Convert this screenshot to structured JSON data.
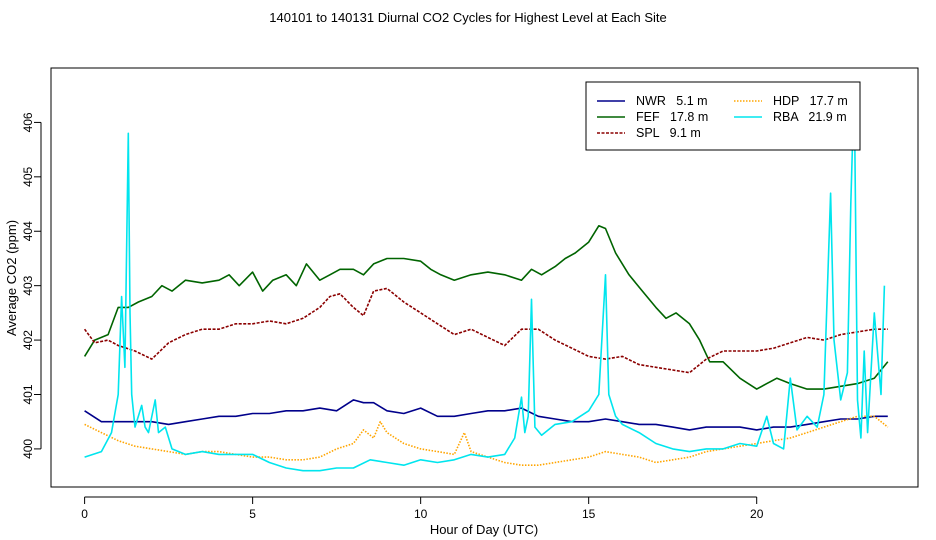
{
  "chart_data": {
    "type": "line",
    "title": "140101  to  140131 Diurnal CO2 Cycles for Highest Level at Each Site",
    "xlabel": "Hour of Day (UTC)",
    "ylabel": "Average CO2 (ppm)",
    "xlim": [
      -1,
      24.8
    ],
    "ylim": [
      399.3,
      407.0
    ],
    "xticks": [
      0,
      5,
      10,
      15,
      20
    ],
    "yticks": [
      400,
      401,
      402,
      403,
      404,
      405,
      406
    ],
    "legend_position": "top-right",
    "legend_columns": 2,
    "series": [
      {
        "name": "NWR   5.1 m",
        "color": "#00008B",
        "style": "solid",
        "x": [
          0,
          0.5,
          1,
          1.5,
          2,
          2.5,
          3,
          3.5,
          4,
          4.5,
          5,
          5.5,
          6,
          6.5,
          7,
          7.5,
          8,
          8.3,
          8.6,
          9,
          9.5,
          10,
          10.5,
          11,
          11.5,
          12,
          12.5,
          13,
          13.5,
          14,
          14.5,
          15,
          15.5,
          16,
          16.5,
          17,
          17.5,
          18,
          18.5,
          19,
          19.5,
          20,
          20.5,
          21,
          21.5,
          22,
          22.5,
          23,
          23.5,
          23.9
        ],
        "y": [
          400.7,
          400.5,
          400.5,
          400.5,
          400.5,
          400.45,
          400.5,
          400.55,
          400.6,
          400.6,
          400.65,
          400.65,
          400.7,
          400.7,
          400.75,
          400.7,
          400.9,
          400.85,
          400.85,
          400.7,
          400.65,
          400.75,
          400.6,
          400.6,
          400.65,
          400.7,
          400.7,
          400.75,
          400.6,
          400.55,
          400.5,
          400.5,
          400.55,
          400.5,
          400.45,
          400.45,
          400.4,
          400.35,
          400.4,
          400.4,
          400.4,
          400.35,
          400.4,
          400.4,
          400.45,
          400.5,
          400.55,
          400.55,
          400.6,
          400.6
        ]
      },
      {
        "name": "FEF   17.8 m",
        "color": "#006400",
        "style": "solid",
        "x": [
          0,
          0.3,
          0.7,
          1,
          1.3,
          1.6,
          2,
          2.3,
          2.6,
          3,
          3.5,
          4,
          4.3,
          4.6,
          5,
          5.3,
          5.6,
          6,
          6.3,
          6.6,
          7,
          7.3,
          7.6,
          8,
          8.3,
          8.6,
          9,
          9.5,
          10,
          10.3,
          10.6,
          11,
          11.5,
          12,
          12.5,
          13,
          13.3,
          13.6,
          14,
          14.3,
          14.6,
          15,
          15.3,
          15.5,
          15.8,
          16.2,
          16.6,
          17,
          17.3,
          17.6,
          18,
          18.3,
          18.6,
          19,
          19.5,
          20,
          20.3,
          20.6,
          21,
          21.5,
          22,
          22.5,
          23,
          23.5,
          23.9
        ],
        "y": [
          401.7,
          402.0,
          402.1,
          402.6,
          402.6,
          402.7,
          402.8,
          403.0,
          402.9,
          403.1,
          403.05,
          403.1,
          403.2,
          403.0,
          403.25,
          402.9,
          403.1,
          403.2,
          403.0,
          403.4,
          403.1,
          403.2,
          403.3,
          403.3,
          403.2,
          403.4,
          403.5,
          403.5,
          403.45,
          403.3,
          403.2,
          403.1,
          403.2,
          403.25,
          403.2,
          403.1,
          403.3,
          403.2,
          403.35,
          403.5,
          403.6,
          403.8,
          404.1,
          404.05,
          403.6,
          403.2,
          402.9,
          402.6,
          402.4,
          402.5,
          402.3,
          402.0,
          401.6,
          401.6,
          401.3,
          401.1,
          401.2,
          401.3,
          401.2,
          401.1,
          401.1,
          401.15,
          401.2,
          401.3,
          401.6
        ]
      },
      {
        "name": "SPL   9.1 m",
        "color": "#8B0000",
        "style": "dashed",
        "x": [
          0,
          0.3,
          0.7,
          1,
          1.5,
          2,
          2.5,
          3,
          3.5,
          4,
          4.5,
          5,
          5.5,
          6,
          6.5,
          7,
          7.3,
          7.6,
          8,
          8.3,
          8.6,
          9,
          9.5,
          10,
          10.5,
          11,
          11.5,
          12,
          12.5,
          13,
          13.5,
          14,
          14.5,
          15,
          15.5,
          16,
          16.5,
          17,
          17.5,
          18,
          18.5,
          19,
          19.5,
          20,
          20.5,
          21,
          21.5,
          22,
          22.5,
          23,
          23.5,
          23.9
        ],
        "y": [
          402.2,
          401.95,
          402.0,
          401.9,
          401.8,
          401.65,
          401.95,
          402.1,
          402.2,
          402.2,
          402.3,
          402.3,
          402.35,
          402.3,
          402.4,
          402.6,
          402.8,
          402.85,
          402.6,
          402.45,
          402.9,
          402.95,
          402.7,
          402.5,
          402.3,
          402.1,
          402.2,
          402.05,
          401.9,
          402.2,
          402.2,
          402.0,
          401.85,
          401.7,
          401.65,
          401.7,
          401.55,
          401.5,
          401.45,
          401.4,
          401.65,
          401.8,
          401.8,
          401.8,
          401.85,
          401.95,
          402.05,
          402.0,
          402.1,
          402.15,
          402.2,
          402.2
        ]
      },
      {
        "name": "HDP   17.7 m",
        "color": "#FFA500",
        "style": "dotted",
        "x": [
          0,
          0.5,
          1,
          1.5,
          2,
          2.5,
          3,
          3.5,
          4,
          4.5,
          5,
          5.5,
          6,
          6.5,
          7,
          7.5,
          8,
          8.3,
          8.6,
          8.8,
          9,
          9.5,
          10,
          10.5,
          11,
          11.3,
          11.5,
          12,
          12.5,
          13,
          13.5,
          14,
          14.5,
          15,
          15.5,
          16,
          16.5,
          17,
          17.5,
          18,
          18.5,
          19,
          19.5,
          20,
          20.5,
          21,
          21.5,
          22,
          22.5,
          23,
          23.5,
          23.9
        ],
        "y": [
          400.45,
          400.3,
          400.15,
          400.05,
          400.0,
          399.95,
          399.9,
          399.95,
          399.95,
          399.9,
          399.85,
          399.85,
          399.8,
          399.8,
          399.85,
          400.0,
          400.1,
          400.35,
          400.2,
          400.5,
          400.3,
          400.1,
          400.0,
          399.95,
          399.9,
          400.3,
          399.95,
          399.85,
          399.75,
          399.7,
          399.7,
          399.75,
          399.8,
          399.85,
          399.95,
          399.9,
          399.85,
          399.75,
          399.8,
          399.85,
          399.95,
          400.0,
          400.05,
          400.1,
          400.15,
          400.2,
          400.3,
          400.4,
          400.5,
          400.6,
          400.6,
          400.4
        ]
      },
      {
        "name": "RBA   21.9 m",
        "color": "#00E5EE",
        "style": "solid",
        "x": [
          0,
          0.5,
          0.8,
          1.0,
          1.1,
          1.2,
          1.3,
          1.35,
          1.4,
          1.5,
          1.7,
          1.8,
          1.9,
          2.1,
          2.2,
          2.4,
          2.6,
          3,
          3.5,
          4,
          4.5,
          5,
          5.5,
          6,
          6.5,
          7,
          7.5,
          8,
          8.5,
          9,
          9.5,
          10,
          10.5,
          11,
          11.5,
          12,
          12.5,
          12.8,
          13,
          13.1,
          13.2,
          13.3,
          13.4,
          13.6,
          14,
          14.5,
          15,
          15.3,
          15.5,
          15.6,
          15.8,
          16,
          16.5,
          17,
          17.5,
          18,
          18.5,
          19,
          19.5,
          20,
          20.3,
          20.5,
          20.8,
          21,
          21.2,
          21.5,
          21.8,
          22,
          22.2,
          22.3,
          22.5,
          22.7,
          22.8,
          22.9,
          23,
          23.1,
          23.2,
          23.3,
          23.5,
          23.7,
          23.8
        ],
        "y": [
          399.85,
          399.95,
          400.3,
          401.0,
          402.8,
          401.5,
          405.8,
          402.5,
          401.0,
          400.4,
          400.8,
          400.4,
          400.3,
          400.9,
          400.3,
          400.4,
          400.0,
          399.9,
          399.95,
          399.9,
          399.9,
          399.9,
          399.75,
          399.65,
          399.6,
          399.6,
          399.65,
          399.65,
          399.8,
          399.75,
          399.7,
          399.8,
          399.75,
          399.8,
          399.9,
          399.85,
          399.9,
          400.2,
          400.95,
          400.3,
          400.6,
          402.75,
          400.4,
          400.25,
          400.45,
          400.5,
          400.7,
          401.0,
          403.2,
          401.0,
          400.6,
          400.45,
          400.3,
          400.1,
          400.0,
          399.95,
          400.0,
          400.0,
          400.1,
          400.05,
          400.6,
          400.1,
          400.0,
          401.3,
          400.35,
          400.6,
          400.4,
          401.0,
          404.7,
          402.0,
          400.9,
          401.4,
          404.5,
          406.7,
          400.9,
          400.2,
          401.8,
          400.3,
          402.5,
          401.0,
          403.0
        ]
      }
    ]
  }
}
